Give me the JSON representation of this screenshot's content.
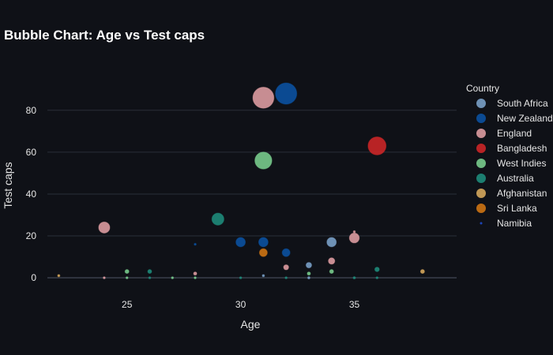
{
  "chart_data": {
    "type": "scatter",
    "title": "Bubble Chart: Age vs Test caps",
    "xlabel": "Age",
    "ylabel": "Test caps",
    "xlim": [
      21.5,
      39.5
    ],
    "ylim": [
      -6,
      95
    ],
    "xticks": [
      25,
      30,
      35
    ],
    "yticks": [
      0,
      20,
      40,
      60,
      80
    ],
    "grid": true,
    "legend_title": "Country",
    "legend_position": "right",
    "series": [
      {
        "name": "South Africa",
        "color": "#7fa8d1",
        "points": [
          {
            "x": 31,
            "y": 1,
            "size": 1
          },
          {
            "x": 33,
            "y": 6,
            "size": 6
          },
          {
            "x": 33,
            "y": 0,
            "size": 1
          },
          {
            "x": 34,
            "y": 17,
            "size": 17
          }
        ]
      },
      {
        "name": "New Zealand",
        "color": "#0b55a8",
        "points": [
          {
            "x": 28,
            "y": 16,
            "size": 0.3
          },
          {
            "x": 30,
            "y": 17,
            "size": 17
          },
          {
            "x": 31,
            "y": 17,
            "size": 17
          },
          {
            "x": 32,
            "y": 12,
            "size": 12
          },
          {
            "x": 32,
            "y": 88,
            "size": 88
          }
        ]
      },
      {
        "name": "England",
        "color": "#e8a3a8",
        "points": [
          {
            "x": 24,
            "y": 24,
            "size": 24
          },
          {
            "x": 24,
            "y": 0,
            "size": 0.3
          },
          {
            "x": 28,
            "y": 2,
            "size": 2
          },
          {
            "x": 31,
            "y": 86,
            "size": 86
          },
          {
            "x": 32,
            "y": 5,
            "size": 5
          },
          {
            "x": 34,
            "y": 8,
            "size": 8
          },
          {
            "x": 35,
            "y": 22,
            "size": 0.3
          },
          {
            "x": 35,
            "y": 19,
            "size": 19
          }
        ]
      },
      {
        "name": "Bangladesh",
        "color": "#d62728",
        "points": [
          {
            "x": 36,
            "y": 63,
            "size": 63
          }
        ]
      },
      {
        "name": "West Indies",
        "color": "#7ed693",
        "points": [
          {
            "x": 25,
            "y": 3,
            "size": 3
          },
          {
            "x": 25,
            "y": 0,
            "size": 0.3
          },
          {
            "x": 27,
            "y": 0,
            "size": 0.3
          },
          {
            "x": 28,
            "y": 0,
            "size": 0.5
          },
          {
            "x": 31,
            "y": 56,
            "size": 56
          },
          {
            "x": 33,
            "y": 2,
            "size": 2
          },
          {
            "x": 34,
            "y": 3,
            "size": 3
          }
        ]
      },
      {
        "name": "Australia",
        "color": "#1e9280",
        "points": [
          {
            "x": 26,
            "y": 3,
            "size": 3
          },
          {
            "x": 26,
            "y": 0,
            "size": 0.3
          },
          {
            "x": 29,
            "y": 28,
            "size": 28
          },
          {
            "x": 30,
            "y": 0,
            "size": 0.5
          },
          {
            "x": 32,
            "y": 0,
            "size": 0.3
          },
          {
            "x": 35,
            "y": 0,
            "size": 1
          },
          {
            "x": 36,
            "y": 4,
            "size": 4
          },
          {
            "x": 36,
            "y": 0,
            "size": 0.3
          }
        ]
      },
      {
        "name": "Afghanistan",
        "color": "#e0b060",
        "points": [
          {
            "x": 22,
            "y": 1,
            "size": 1
          },
          {
            "x": 38,
            "y": 3,
            "size": 3
          }
        ]
      },
      {
        "name": "Sri Lanka",
        "color": "#d97a13",
        "points": [
          {
            "x": 31,
            "y": 12,
            "size": 12
          }
        ]
      },
      {
        "name": "Namibia",
        "color": "#1f4fd6",
        "points": []
      }
    ]
  }
}
